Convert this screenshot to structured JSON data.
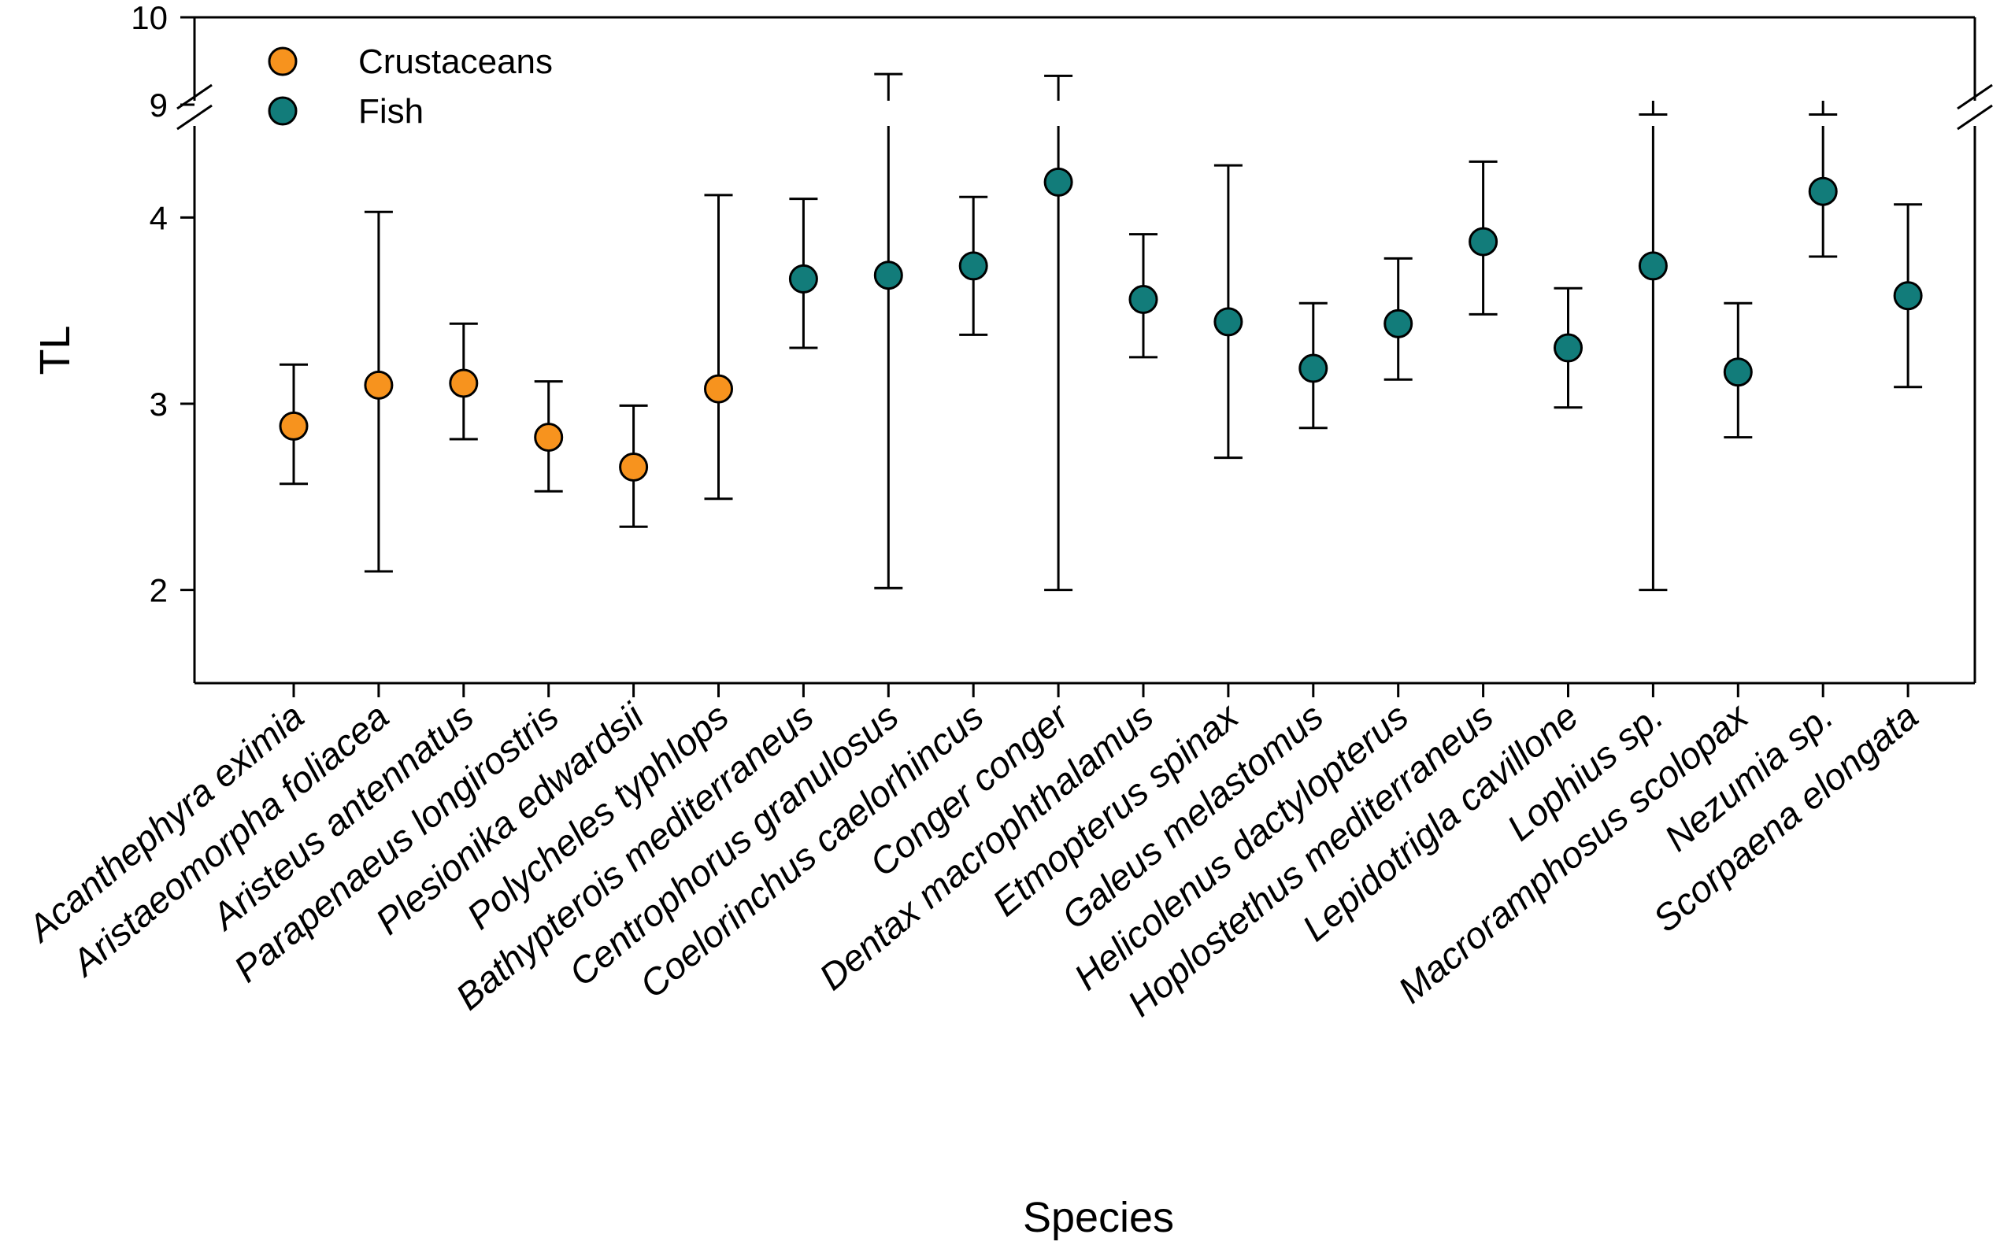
{
  "chart_data": {
    "type": "scatter",
    "title": "",
    "xlabel": "Species",
    "ylabel": "TL",
    "ylim_lower": [
      1.5,
      4.5
    ],
    "ylim_upper": [
      9,
      10
    ],
    "yticks": [
      {
        "value": 2,
        "label": "2"
      },
      {
        "value": 3,
        "label": "3"
      },
      {
        "value": 4,
        "label": "4"
      },
      {
        "value": 9,
        "label": "9"
      },
      {
        "value": 10,
        "label": "10"
      }
    ],
    "axis_break": true,
    "grid": false,
    "legend_position": "top-left",
    "series": [
      {
        "name": "Crustaceans",
        "color": "#F7931E"
      },
      {
        "name": "Fish",
        "color": "#127C7A"
      }
    ],
    "points": [
      {
        "species": "Acanthephyra eximia",
        "group": "Crustaceans",
        "mean": 2.88,
        "low": 2.57,
        "high": 3.21
      },
      {
        "species": "Aristaeomorpha foliacea",
        "group": "Crustaceans",
        "mean": 3.1,
        "low": 2.1,
        "high": 4.03
      },
      {
        "species": "Aristeus antennatus",
        "group": "Crustaceans",
        "mean": 3.11,
        "low": 2.81,
        "high": 3.43
      },
      {
        "species": "Parapenaeus longirostris",
        "group": "Crustaceans",
        "mean": 2.82,
        "low": 2.53,
        "high": 3.12
      },
      {
        "species": "Plesionika edwardsii",
        "group": "Crustaceans",
        "mean": 2.66,
        "low": 2.34,
        "high": 2.99
      },
      {
        "species": "Polycheles typhlops",
        "group": "Crustaceans",
        "mean": 3.08,
        "low": 2.49,
        "high": 4.12
      },
      {
        "species": "Bathypterois mediterraneus",
        "group": "Fish",
        "mean": 3.67,
        "low": 3.3,
        "high": 4.1
      },
      {
        "species": "Centrophorus granulosus",
        "group": "Fish",
        "mean": 3.69,
        "low": 2.01,
        "high": 9.35
      },
      {
        "species": "Coelorinchus caelorhincus",
        "group": "Fish",
        "mean": 3.74,
        "low": 3.37,
        "high": 4.11
      },
      {
        "species": "Conger conger",
        "group": "Fish",
        "mean": 4.19,
        "low": 2.0,
        "high": 9.33
      },
      {
        "species": "Dentax macrophthalamus",
        "group": "Fish",
        "mean": 3.56,
        "low": 3.25,
        "high": 3.91
      },
      {
        "species": "Etmopterus spinax",
        "group": "Fish",
        "mean": 3.44,
        "low": 2.71,
        "high": 4.28
      },
      {
        "species": "Galeus melastomus",
        "group": "Fish",
        "mean": 3.19,
        "low": 2.87,
        "high": 3.54
      },
      {
        "species": "Helicolenus dactylopterus",
        "group": "Fish",
        "mean": 3.43,
        "low": 3.13,
        "high": 3.78
      },
      {
        "species": "Hoplostethus mediterraneus",
        "group": "Fish",
        "mean": 3.87,
        "low": 3.48,
        "high": 4.3
      },
      {
        "species": "Lepidotrigla cavillone",
        "group": "Fish",
        "mean": 3.3,
        "low": 2.98,
        "high": 3.62
      },
      {
        "species": "Lophius sp.",
        "group": "Fish",
        "mean": 3.74,
        "low": 2.0,
        "high": 8.95
      },
      {
        "species": "Macroramphosus scolopax",
        "group": "Fish",
        "mean": 3.17,
        "low": 2.82,
        "high": 3.54
      },
      {
        "species": "Nezumia sp.",
        "group": "Fish",
        "mean": 4.14,
        "low": 3.79,
        "high": 4.51
      },
      {
        "species": "Scorpaena elongata",
        "group": "Fish",
        "mean": 3.58,
        "low": 3.09,
        "high": 4.07
      }
    ]
  }
}
